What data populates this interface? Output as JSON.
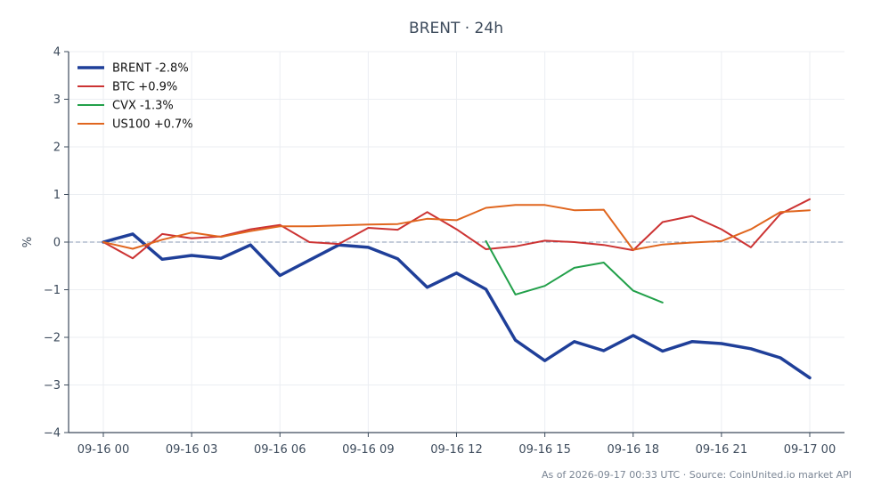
{
  "chart_data": {
    "type": "line",
    "title": "BRENT · 24h",
    "xlabel": "",
    "ylabel": "%",
    "ylim": [
      -4,
      4
    ],
    "yticks": [
      -4,
      -3,
      -2,
      -1,
      0,
      1,
      2,
      3,
      4
    ],
    "ytick_labels": [
      "−4",
      "−3",
      "−2",
      "−1",
      "0",
      "1",
      "2",
      "3",
      "4"
    ],
    "x_hours": [
      0,
      1,
      2,
      3,
      4,
      5,
      6,
      7,
      8,
      9,
      10,
      11,
      12,
      13,
      14,
      15,
      16,
      17,
      18,
      19,
      20,
      21,
      22,
      23,
      24
    ],
    "xticks": [
      0,
      3,
      6,
      9,
      12,
      15,
      18,
      21,
      24
    ],
    "xtick_labels": [
      "09-16 00",
      "09-16 03",
      "09-16 06",
      "09-16 09",
      "09-16 12",
      "09-16 15",
      "09-16 18",
      "09-16 21",
      "09-17 00"
    ],
    "grid": true,
    "legend_position": "top-left",
    "zero_line": true,
    "series": [
      {
        "name": "BRENT -2.8%",
        "color": "#1f3f99",
        "width": 3.5,
        "values": [
          0,
          0.17,
          -0.36,
          -0.28,
          -0.34,
          -0.06,
          -0.7,
          -0.38,
          -0.06,
          -0.11,
          -0.35,
          -0.95,
          -0.65,
          -0.99,
          -2.06,
          -2.49,
          -2.09,
          -2.28,
          -1.96,
          -2.29,
          -2.09,
          -2.13,
          -2.24,
          -2.43,
          -2.85
        ]
      },
      {
        "name": "BTC +0.9%",
        "color": "#cc3333",
        "width": 2,
        "values": [
          0,
          -0.34,
          0.17,
          0.08,
          0.12,
          0.27,
          0.36,
          0.0,
          -0.04,
          0.3,
          0.26,
          0.63,
          0.27,
          -0.15,
          -0.09,
          0.03,
          0.0,
          -0.06,
          -0.17,
          0.42,
          0.55,
          0.27,
          -0.11,
          0.59,
          0.9
        ]
      },
      {
        "name": "CVX -1.3%",
        "color": "#22a04a",
        "width": 2,
        "values": [
          null,
          null,
          null,
          null,
          null,
          null,
          null,
          null,
          null,
          null,
          null,
          null,
          null,
          0.02,
          -1.1,
          -0.92,
          -0.54,
          -0.43,
          -1.02,
          -1.27,
          null,
          null,
          null,
          null,
          null
        ]
      },
      {
        "name": "US100 +0.7%",
        "color": "#e0661f",
        "width": 2,
        "values": [
          0,
          -0.14,
          0.05,
          0.2,
          0.11,
          0.23,
          0.33,
          0.33,
          0.35,
          0.37,
          0.38,
          0.49,
          0.46,
          0.72,
          0.78,
          0.78,
          0.67,
          0.68,
          -0.16,
          -0.05,
          -0.01,
          0.02,
          0.27,
          0.63,
          0.67
        ]
      }
    ]
  },
  "footer": "As of 2026-09-17 00:33 UTC · Source: CoinUnited.io market API"
}
